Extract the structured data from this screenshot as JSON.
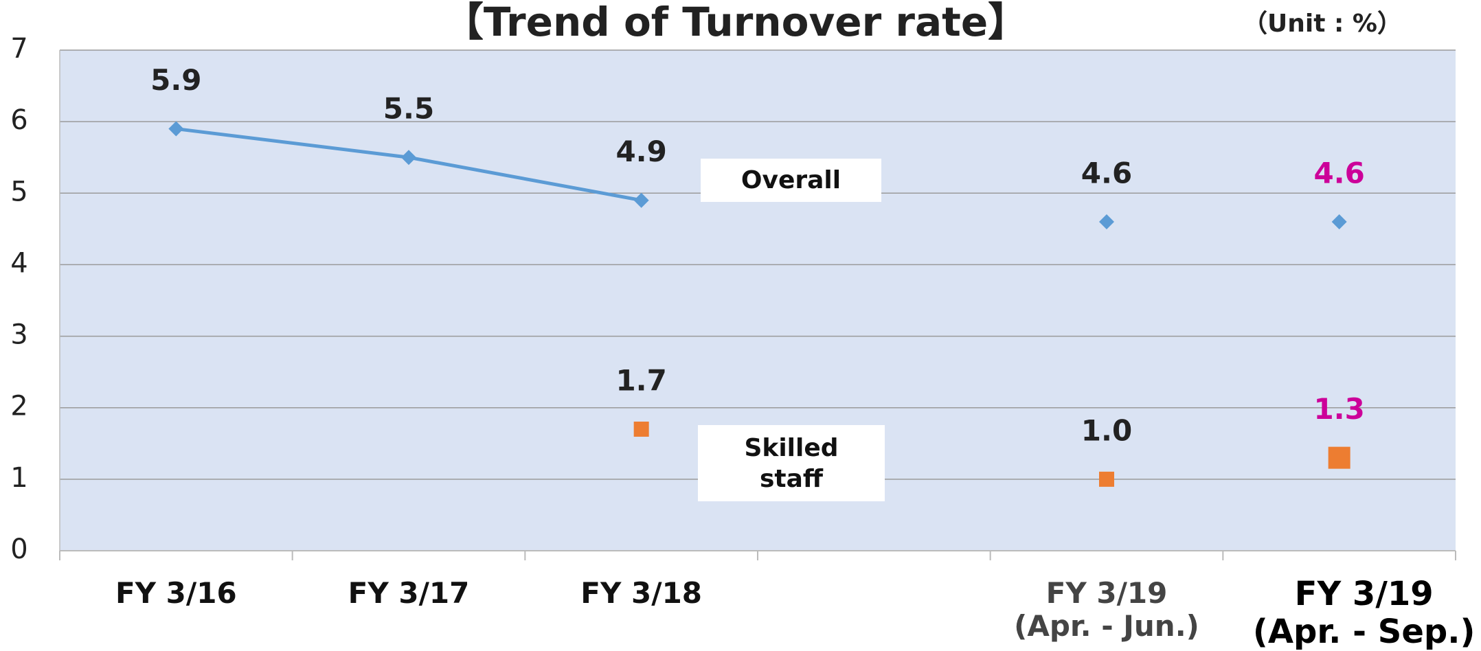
{
  "chart_data": {
    "type": "line",
    "title": "【Trend of Turnover rate】",
    "unit_label": "（Unit : %）",
    "categories": [
      "FY 3/16",
      "FY 3/17",
      "FY 3/18",
      null,
      "FY 3/19\n(Apr. - Jun.)",
      "FY 3/19\n(Apr. - Sep.)"
    ],
    "category_colors": [
      "#111111",
      "#111111",
      "#111111",
      null,
      "#444444",
      "#000000"
    ],
    "series": [
      {
        "name": "Overall",
        "type": "line",
        "color": "#5b9bd5",
        "marker": "diamond",
        "values": [
          5.9,
          5.5,
          4.9,
          null,
          null,
          null
        ],
        "value_labels": [
          "5.9",
          "5.5",
          "4.9",
          null,
          null,
          null
        ],
        "label_colors": [
          "#222222",
          "#222222",
          "#222222",
          null,
          null,
          null
        ]
      },
      {
        "type": "scatter",
        "color": "#5b9bd5",
        "marker": "diamond",
        "values": [
          null,
          null,
          null,
          null,
          4.6,
          4.6
        ],
        "value_labels": [
          null,
          null,
          null,
          null,
          "4.6",
          "4.6"
        ],
        "label_colors": [
          null,
          null,
          null,
          null,
          "#222222",
          "#cc0099"
        ]
      },
      {
        "name": "Skilled\nstaff",
        "type": "scatter",
        "color": "#ed7d31",
        "marker": "square",
        "values": [
          null,
          null,
          1.7,
          null,
          1.0,
          1.3
        ],
        "value_labels": [
          null,
          null,
          "1.7",
          null,
          "1.0",
          "1.3"
        ],
        "label_colors": [
          null,
          null,
          "#222222",
          null,
          "#222222",
          "#cc0099"
        ]
      }
    ],
    "ylim": [
      0,
      7
    ],
    "yticks": [
      0,
      1,
      2,
      3,
      4,
      5,
      6,
      7
    ],
    "grid": true,
    "plot_background": "#dae3f3"
  }
}
